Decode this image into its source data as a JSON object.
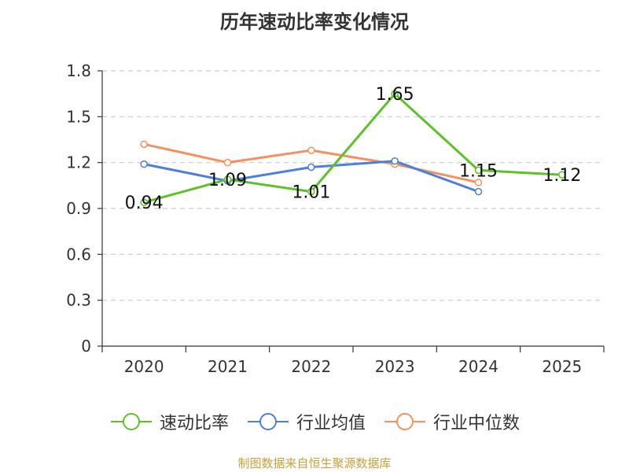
{
  "chart_data": {
    "type": "line",
    "title": "历年速动比率变化情况",
    "categories": [
      "2020",
      "2021",
      "2022",
      "2023",
      "2024",
      "2025"
    ],
    "ylim": [
      0,
      1.8
    ],
    "yticks": [
      "0",
      "0.3",
      "0.6",
      "0.9",
      "1.2",
      "1.5",
      "1.8"
    ],
    "grid": true,
    "legend_position": "bottom",
    "series": [
      {
        "name": "速动比率",
        "color": "#5cc228",
        "values": [
          0.94,
          1.09,
          1.01,
          1.65,
          1.15,
          1.12
        ],
        "labels": [
          "0.94",
          "1.09",
          "1.01",
          "1.65",
          "1.15",
          "1.12"
        ]
      },
      {
        "name": "行业均值",
        "color": "#4e7fdb",
        "values": [
          1.19,
          1.08,
          1.17,
          1.21,
          1.01,
          null
        ]
      },
      {
        "name": "行业中位数",
        "color": "#f7905f",
        "values": [
          1.32,
          1.2,
          1.28,
          1.19,
          1.07,
          null
        ]
      }
    ]
  },
  "source": "制图数据来自恒生聚源数据库"
}
